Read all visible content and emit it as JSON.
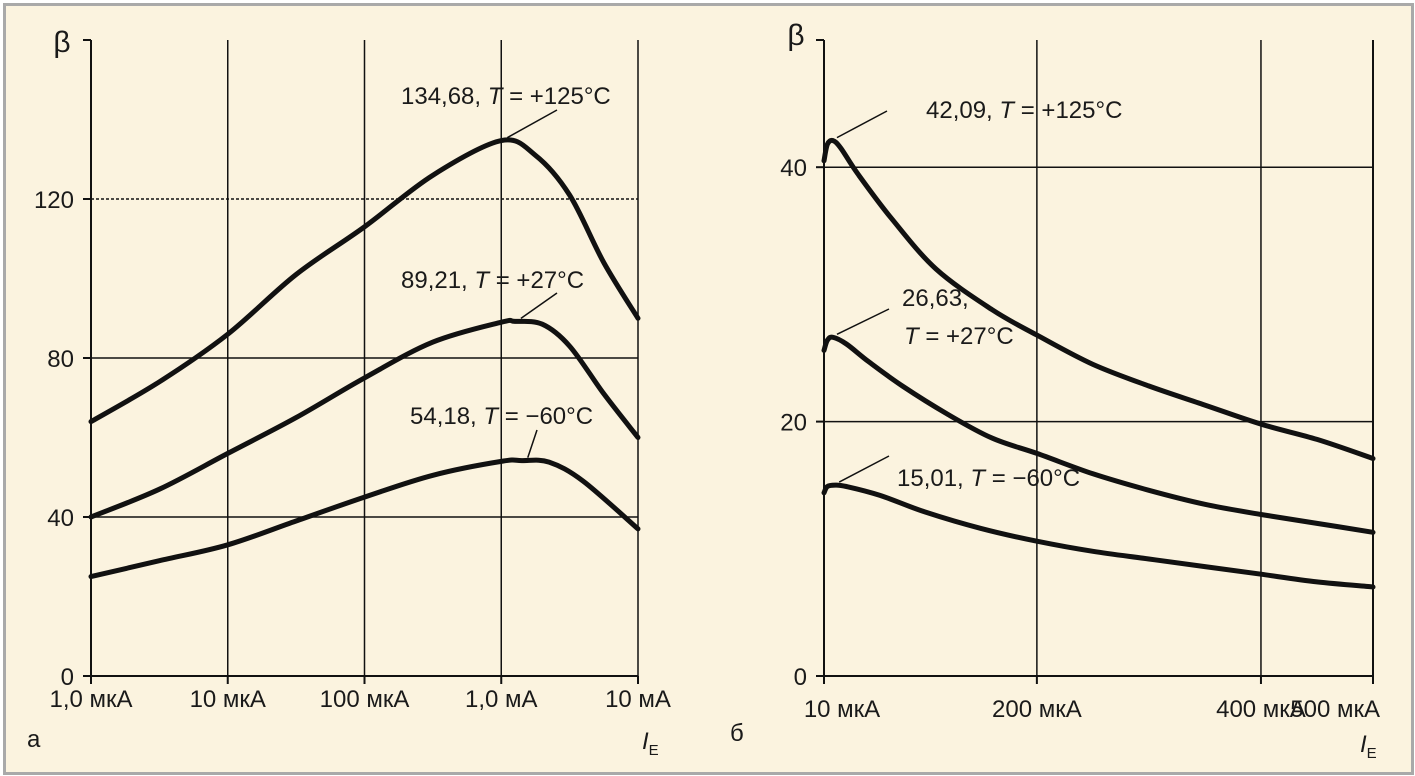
{
  "chart_data": [
    {
      "type": "line",
      "panel_label": "а",
      "ylabel": "β",
      "xlabel_main": "I",
      "xlabel_sub": "E",
      "x_scale": "log",
      "x_ticks": [
        "1,0 мкА",
        "10 мкА",
        "100 мкА",
        "1,0 мА",
        "10 мА"
      ],
      "y_ticks": [
        "0",
        "40",
        "80",
        "120"
      ],
      "ylim": [
        0,
        160
      ],
      "grid": true,
      "series": [
        {
          "annotation_value": "134,68, ",
          "annotation_temp": " = +125°C",
          "points": [
            [
              0,
              64
            ],
            [
              0.5,
              74
            ],
            [
              1,
              86
            ],
            [
              1.5,
              101
            ],
            [
              2,
              113
            ],
            [
              2.5,
              126
            ],
            [
              3,
              134.68
            ],
            [
              3.25,
              131
            ],
            [
              3.5,
              121
            ],
            [
              3.75,
              104
            ],
            [
              4,
              90
            ]
          ]
        },
        {
          "annotation_value": "89,21, ",
          "annotation_temp": " = +27°C",
          "points": [
            [
              0,
              40
            ],
            [
              0.5,
              47
            ],
            [
              1,
              56
            ],
            [
              1.5,
              65
            ],
            [
              2,
              75
            ],
            [
              2.5,
              84
            ],
            [
              3,
              89
            ],
            [
              3.1,
              89.21
            ],
            [
              3.3,
              88.5
            ],
            [
              3.5,
              83
            ],
            [
              3.75,
              71
            ],
            [
              4,
              60
            ]
          ]
        },
        {
          "annotation_value": "54,18, ",
          "annotation_temp": " = −60°C",
          "points": [
            [
              0,
              25
            ],
            [
              0.5,
              29
            ],
            [
              1,
              33
            ],
            [
              1.5,
              39
            ],
            [
              2,
              45
            ],
            [
              2.5,
              50.5
            ],
            [
              3,
              54
            ],
            [
              3.15,
              54.18
            ],
            [
              3.35,
              53.8
            ],
            [
              3.6,
              49
            ],
            [
              4,
              37
            ]
          ]
        }
      ]
    },
    {
      "type": "line",
      "panel_label": "б",
      "ylabel": "β",
      "xlabel_main": "I",
      "xlabel_sub": "E",
      "x_scale": "linear",
      "x_ticks": [
        {
          "value": 10,
          "label": "10 мкА"
        },
        {
          "value": 200,
          "label": "200 мкА"
        },
        {
          "value": 400,
          "label": "400 мкА"
        },
        {
          "value": 500,
          "label": "500 мкА"
        }
      ],
      "y_ticks": [
        "0",
        "20",
        "40"
      ],
      "ylim": [
        0,
        50
      ],
      "grid": true,
      "series": [
        {
          "annotation_value": "42,09, ",
          "annotation_temp": " = +125°C",
          "points": [
            [
              10,
              40.5
            ],
            [
              13,
              41.8
            ],
            [
              18,
              42.09
            ],
            [
              25,
              41.5
            ],
            [
              40,
              39.5
            ],
            [
              70,
              36
            ],
            [
              110,
              32
            ],
            [
              160,
              28.8
            ],
            [
              200,
              26.8
            ],
            [
              250,
              24.5
            ],
            [
              300,
              22.8
            ],
            [
              350,
              21.3
            ],
            [
              400,
              19.8
            ],
            [
              450,
              18.6
            ],
            [
              500,
              17.1
            ]
          ]
        },
        {
          "annotation_value": "26,63,",
          "annotation_temp": " = +27°C",
          "points": [
            [
              10,
              25.6
            ],
            [
              13,
              26.4
            ],
            [
              18,
              26.63
            ],
            [
              30,
              26.1
            ],
            [
              50,
              24.7
            ],
            [
              80,
              22.8
            ],
            [
              120,
              20.6
            ],
            [
              160,
              18.7
            ],
            [
              200,
              17.5
            ],
            [
              250,
              15.9
            ],
            [
              300,
              14.6
            ],
            [
              350,
              13.5
            ],
            [
              400,
              12.7
            ],
            [
              450,
              12
            ],
            [
              500,
              11.3
            ]
          ]
        },
        {
          "annotation_value": "15,01, ",
          "annotation_temp": " = −60°C",
          "points": [
            [
              10,
              14.4
            ],
            [
              13,
              14.9
            ],
            [
              20,
              15.01
            ],
            [
              30,
              14.9
            ],
            [
              60,
              14.2
            ],
            [
              100,
              12.9
            ],
            [
              150,
              11.6
            ],
            [
              200,
              10.6
            ],
            [
              250,
              9.8
            ],
            [
              300,
              9.2
            ],
            [
              350,
              8.6
            ],
            [
              400,
              8
            ],
            [
              450,
              7.4
            ],
            [
              500,
              7
            ]
          ]
        }
      ]
    }
  ]
}
